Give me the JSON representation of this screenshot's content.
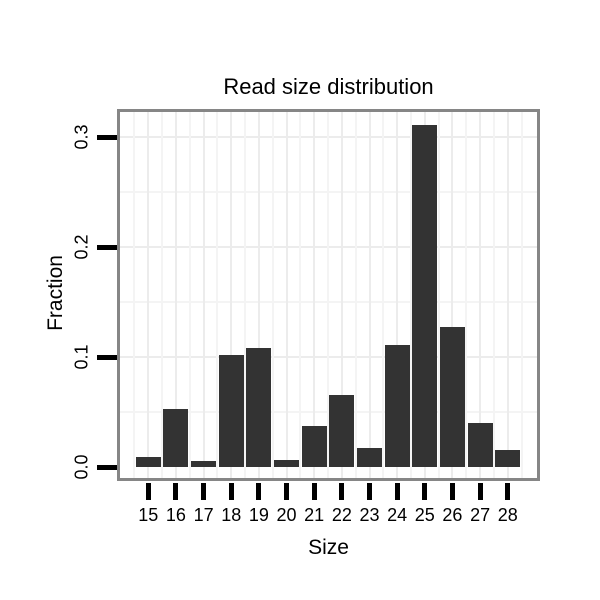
{
  "chart_data": {
    "type": "bar",
    "title": "Read size distribution",
    "xlabel": "Size",
    "ylabel": "Fraction",
    "categories": [
      "15",
      "16",
      "17",
      "18",
      "19",
      "20",
      "21",
      "22",
      "23",
      "24",
      "25",
      "26",
      "27",
      "28"
    ],
    "values": [
      0.009,
      0.053,
      0.005,
      0.102,
      0.108,
      0.006,
      0.037,
      0.065,
      0.017,
      0.111,
      0.311,
      0.127,
      0.04,
      0.015
    ],
    "y_ticks": [
      {
        "label": "0.0",
        "value": 0.0
      },
      {
        "label": "0.1",
        "value": 0.1
      },
      {
        "label": "0.2",
        "value": 0.2
      },
      {
        "label": "0.3",
        "value": 0.3
      }
    ],
    "y_minor_gridlines": [
      0.05,
      0.15,
      0.25
    ],
    "ylim": [
      0.0,
      0.322
    ],
    "grid": "on",
    "legend_position": "none",
    "bar_color": "#333333",
    "grid_major_color": "#ececec",
    "grid_minor_color": "#f4f4f4",
    "panel_border_color": "#868686",
    "tick_color": "#000000"
  }
}
